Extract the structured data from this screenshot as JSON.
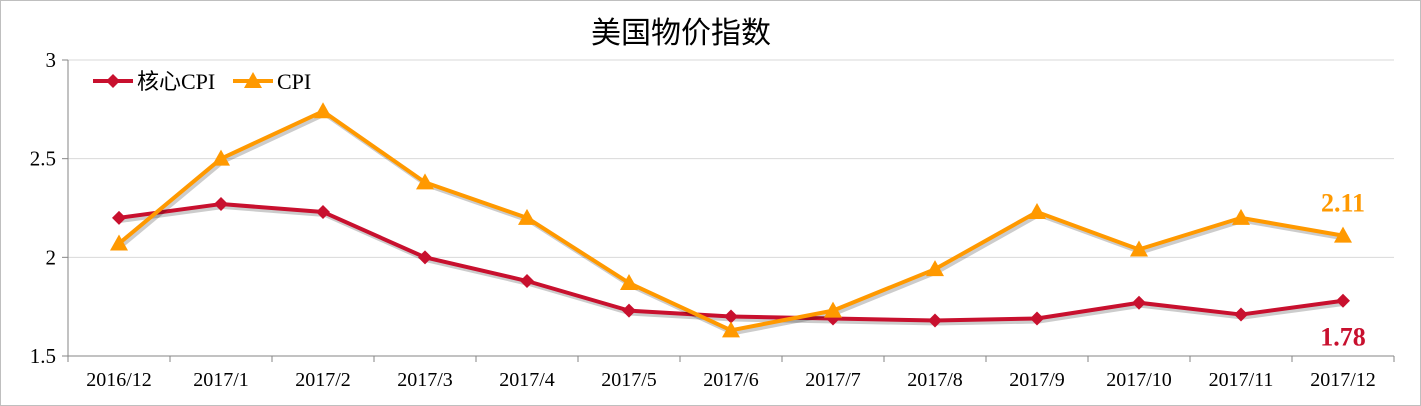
{
  "chart_data": {
    "type": "line",
    "title": "美国物价指数",
    "categories": [
      "2016/12",
      "2017/1",
      "2017/2",
      "2017/3",
      "2017/4",
      "2017/5",
      "2017/6",
      "2017/7",
      "2017/8",
      "2017/9",
      "2017/10",
      "2017/11",
      "2017/12"
    ],
    "ylim": [
      1.5,
      3
    ],
    "yticks": [
      "1.5",
      "2",
      "2.5",
      "3"
    ],
    "grid": true,
    "legend_position": "top-left",
    "series": [
      {
        "name": "核心CPI",
        "color": "#C8102E",
        "marker": "diamond",
        "values": [
          2.2,
          2.27,
          2.23,
          2.0,
          1.88,
          1.73,
          1.7,
          1.69,
          1.68,
          1.69,
          1.77,
          1.71,
          1.78
        ],
        "end_label": "1.78"
      },
      {
        "name": "CPI",
        "color": "#FF9900",
        "marker": "triangle",
        "values": [
          2.07,
          2.5,
          2.74,
          2.38,
          2.2,
          1.87,
          1.63,
          1.73,
          1.94,
          2.23,
          2.04,
          2.2,
          2.11
        ],
        "end_label": "2.11"
      }
    ]
  }
}
